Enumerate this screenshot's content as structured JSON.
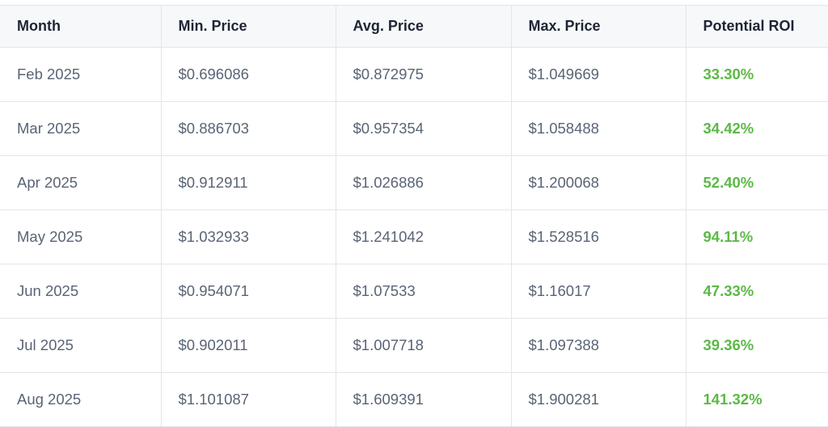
{
  "table": {
    "headers": [
      "Month",
      "Min. Price",
      "Avg. Price",
      "Max. Price",
      "Potential ROI"
    ],
    "rows": [
      [
        "Feb 2025",
        "$0.696086",
        "$0.872975",
        "$1.049669",
        "33.30%"
      ],
      [
        "Mar 2025",
        "$0.886703",
        "$0.957354",
        "$1.058488",
        "34.42%"
      ],
      [
        "Apr 2025",
        "$0.912911",
        "$1.026886",
        "$1.200068",
        "52.40%"
      ],
      [
        "May 2025",
        "$1.032933",
        "$1.241042",
        "$1.528516",
        "94.11%"
      ],
      [
        "Jun 2025",
        "$0.954071",
        "$1.07533",
        "$1.16017",
        "47.33%"
      ],
      [
        "Jul 2025",
        "$0.902011",
        "$1.007718",
        "$1.097388",
        "39.36%"
      ],
      [
        "Aug 2025",
        "$1.101087",
        "$1.609391",
        "$1.900281",
        "141.32%"
      ]
    ]
  },
  "colors": {
    "roi_positive": "#5cb947",
    "header_bg": "#f7f8fa",
    "border": "#e3e5ea"
  }
}
